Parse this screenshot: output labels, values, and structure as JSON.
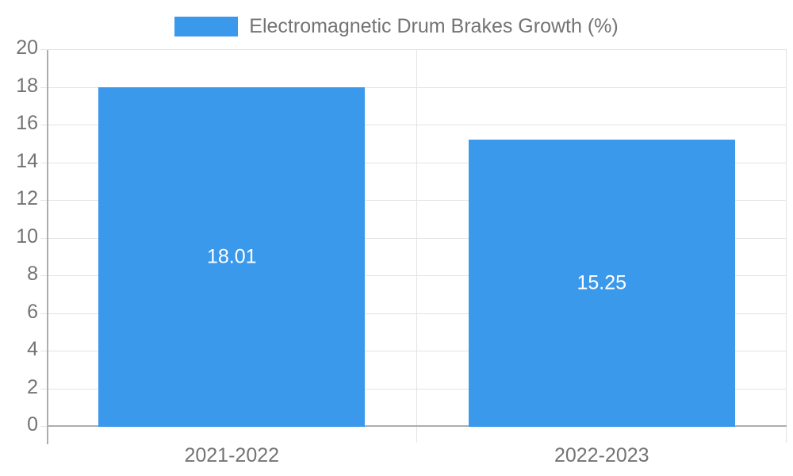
{
  "legend": {
    "swatch_icon": "series-color-swatch",
    "label": "Electromagnetic Drum Brakes Growth (%)"
  },
  "chart_data": {
    "type": "bar",
    "title": "Electromagnetic Drum Brakes Growth (%)",
    "categories": [
      "2021-2022",
      "2022-2023"
    ],
    "values": [
      18.01,
      15.25
    ],
    "value_labels": [
      "18.01",
      "15.25"
    ],
    "xlabel": "",
    "ylabel": "",
    "ylim": [
      0,
      20
    ],
    "ytick_step": 2,
    "ytick_labels": [
      "0",
      "2",
      "4",
      "6",
      "8",
      "10",
      "12",
      "14",
      "16",
      "18",
      "20"
    ],
    "grid": true,
    "legend_position": "top-center",
    "bar_width_fraction": 0.72
  },
  "colors": {
    "bar": "#3B99EC",
    "grid": "#e3e3e3",
    "axis": "#adadad",
    "text": "#737373",
    "value_label": "#ffffff",
    "background": "#ffffff"
  }
}
